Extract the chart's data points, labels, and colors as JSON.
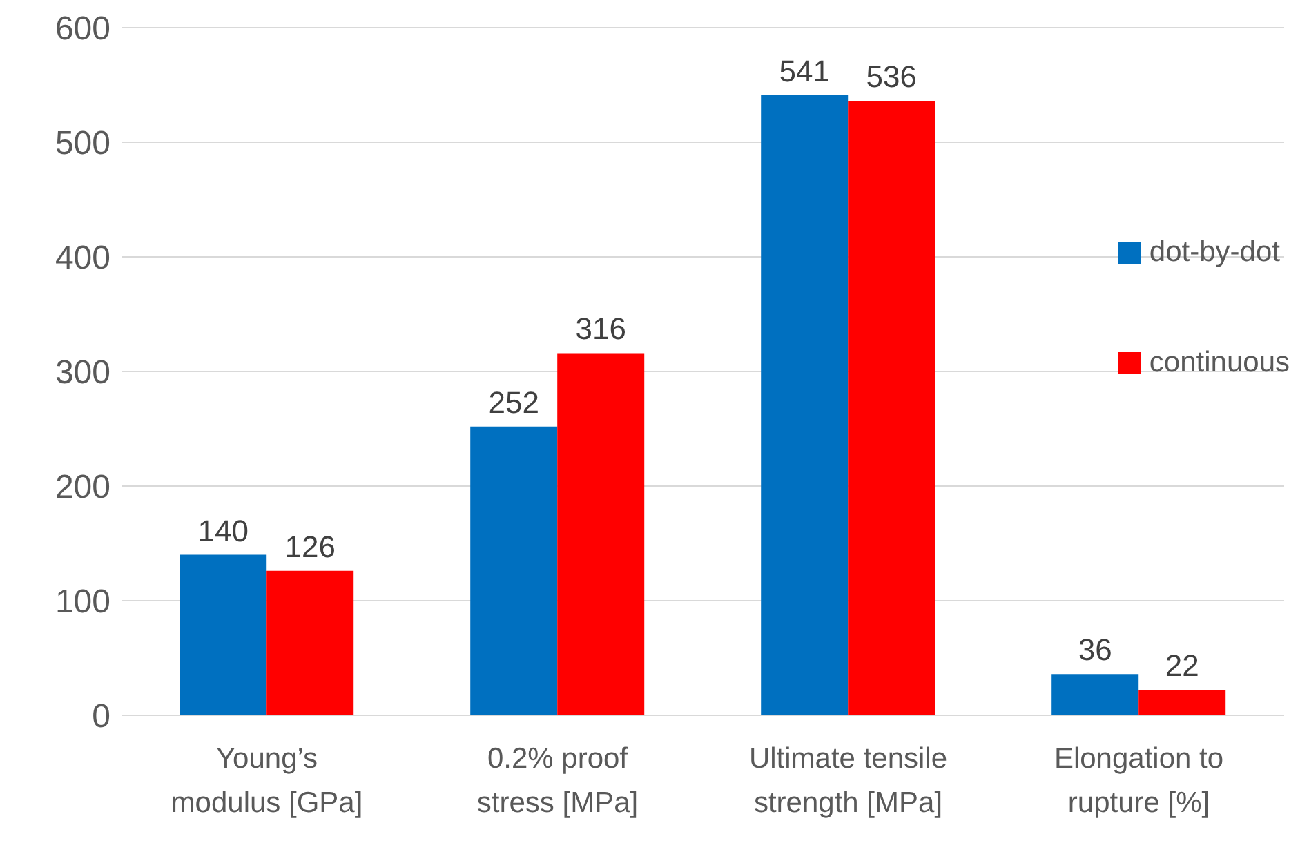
{
  "chart_data": {
    "type": "bar",
    "categories": [
      "Young’s modulus [GPa]",
      "0.2% proof stress [MPa]",
      "Ultimate tensile strength [MPa]",
      "Elongation to rupture [%]"
    ],
    "series": [
      {
        "name": "dot-by-dot",
        "color": "#0070c0",
        "values": [
          140,
          252,
          541,
          36
        ]
      },
      {
        "name": "continuous",
        "color": "#ff0000",
        "values": [
          126,
          316,
          536,
          22
        ]
      }
    ],
    "ylim": [
      0,
      600
    ],
    "yticks": [
      0,
      100,
      200,
      300,
      400,
      500,
      600
    ],
    "grid": "y",
    "legend": "right",
    "data_labels": true
  }
}
